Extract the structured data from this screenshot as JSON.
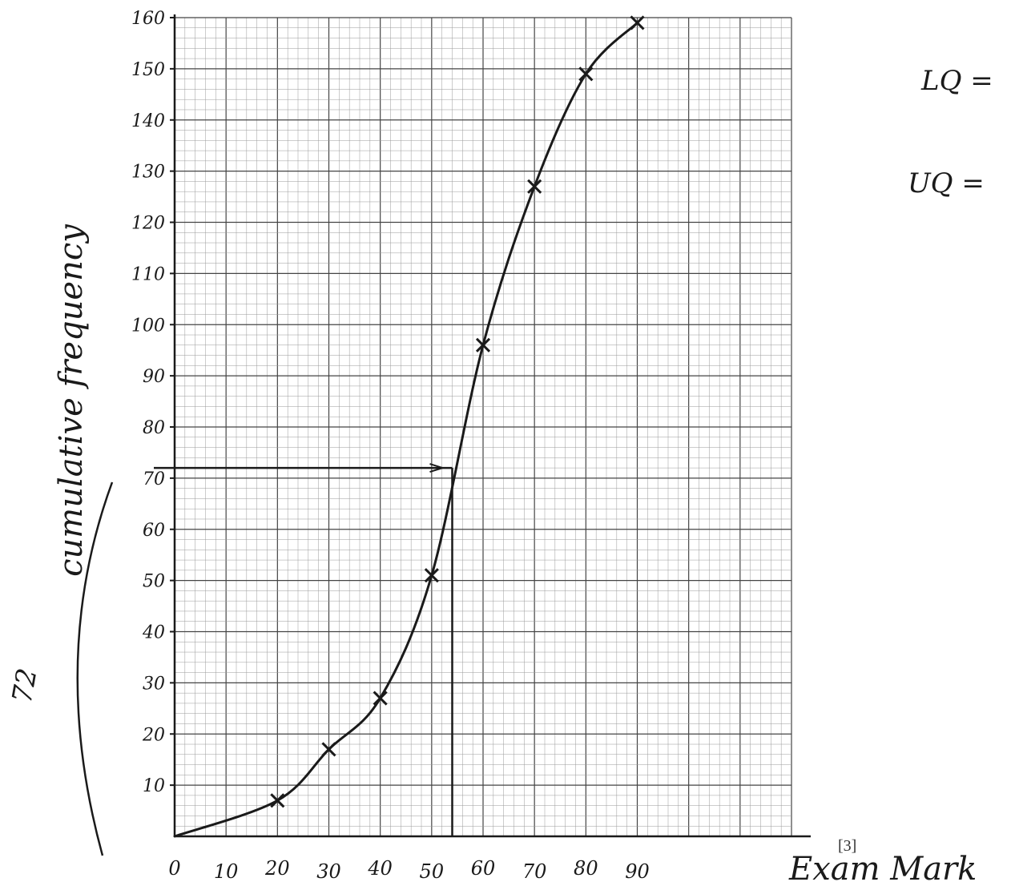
{
  "chart_data": {
    "type": "line",
    "xlabel": "Exam Mark",
    "ylabel": "cumulative frequency",
    "x_ticks": [
      "0",
      "10",
      "20",
      "30",
      "40",
      "50",
      "60",
      "70",
      "80",
      "90"
    ],
    "y_ticks": [
      "10",
      "20",
      "30",
      "40",
      "50",
      "60",
      "70",
      "80",
      "90",
      "100",
      "110",
      "120",
      "130",
      "140",
      "150",
      "160"
    ],
    "xlim": [
      0,
      120
    ],
    "ylim": [
      0,
      160
    ],
    "grid": true,
    "series": [
      {
        "x": [
          0,
          20,
          30,
          40,
          50,
          60,
          70,
          80,
          90
        ],
        "y": [
          0,
          7,
          17,
          27,
          51,
          96,
          127,
          149,
          159
        ]
      }
    ],
    "annotations": {
      "median_line_y": 72,
      "median_line_x": 54,
      "side_value": "72",
      "lq_text": "LQ =",
      "uq_text": "UQ =",
      "marks_text": "[3]"
    },
    "colors": {
      "ink": "#1a1a1a",
      "grid_major": "#444444",
      "grid_minor": "#9a9a9a"
    }
  }
}
